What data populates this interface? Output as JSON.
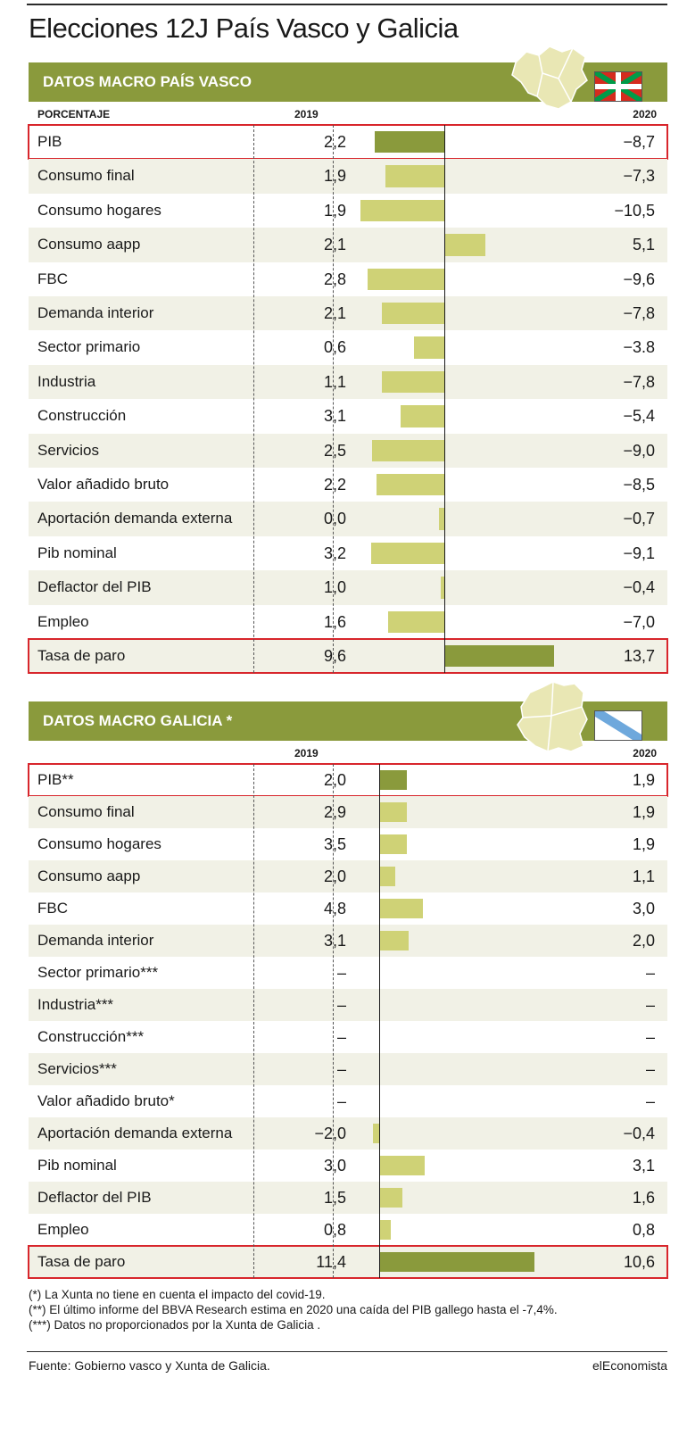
{
  "title": "Elecciones 12J País Vasco y Galicia",
  "colors": {
    "band": "#8a9a3c",
    "bar_light": "#cfd276",
    "bar_dark": "#8a9a3c",
    "highlight": "#d8262c",
    "alt_row": "#f1f1e6"
  },
  "pv": {
    "band_title": "DATOS MACRO PAÍS VASCO",
    "col_label": "PORCENTAJE",
    "col_2019": "2019",
    "col_2020": "2020",
    "icons": [
      "basque-country-map-icon",
      "ikurrina-flag-icon"
    ]
  },
  "ga": {
    "band_title": "DATOS MACRO GALICIA *",
    "col_label": "",
    "col_2019": "2019",
    "col_2020": "2020",
    "icons": [
      "galicia-map-icon",
      "galicia-flag-icon"
    ]
  },
  "chart_data": [
    {
      "type": "bar",
      "title": "DATOS MACRO PAÍS VASCO",
      "unit": "PORCENTAJE",
      "categories": [
        "PIB",
        "Consumo final",
        "Consumo hogares",
        "Consumo aapp",
        "FBC",
        "Demanda interior",
        "Sector primario",
        "Industria",
        "Construcción",
        "Servicios",
        "Valor añadido bruto",
        "Aportación demanda externa",
        "Pib nominal",
        "Deflactor del PIB",
        "Empleo",
        "Tasa de paro"
      ],
      "values_2019_text": [
        "2,2",
        "1,9",
        "1,9",
        "2,1",
        "2,8",
        "2,1",
        "0,6",
        "1,1",
        "3,1",
        "2,5",
        "2,2",
        "0,0",
        "3,2",
        "1,0",
        "1,6",
        "9,6"
      ],
      "values_2020_text": [
        "−8,7",
        "−7,3",
        "−10,5",
        "5,1",
        "−9,6",
        "−7,8",
        "−3.8",
        "−7,8",
        "−5,4",
        "−9,0",
        "−8,5",
        "−0,7",
        "−9,1",
        "−0,4",
        "−7,0",
        "13,7"
      ],
      "series": [
        {
          "name": "2019",
          "values": [
            2.2,
            1.9,
            1.9,
            2.1,
            2.8,
            2.1,
            0.6,
            1.1,
            3.1,
            2.5,
            2.2,
            0.0,
            3.2,
            1.0,
            1.6,
            9.6
          ]
        },
        {
          "name": "2020",
          "values": [
            -8.7,
            -7.3,
            -10.5,
            5.1,
            -9.6,
            -7.8,
            -3.8,
            -7.8,
            -5.4,
            -9.0,
            -8.5,
            -0.7,
            -9.1,
            -0.4,
            -7.0,
            13.7
          ]
        }
      ],
      "highlighted": [
        "PIB",
        "Tasa de paro"
      ]
    },
    {
      "type": "bar",
      "title": "DATOS MACRO GALICIA *",
      "categories": [
        "PIB**",
        "Consumo final",
        "Consumo hogares",
        "Consumo aapp",
        "FBC",
        "Demanda interior",
        "Sector primario***",
        "Industria***",
        "Construcción***",
        "Servicios***",
        "Valor añadido bruto*",
        "Aportación demanda externa",
        "Pib nominal",
        "Deflactor del PIB",
        "Empleo",
        "Tasa de paro"
      ],
      "values_2019_text": [
        "2,0",
        "2,9",
        "3,5",
        "2,0",
        "4,8",
        "3,1",
        "–",
        "–",
        "–",
        "–",
        "–",
        "−2,0",
        "3,0",
        "1,5",
        "0,8",
        "11,4"
      ],
      "values_2020_text": [
        "1,9",
        "1,9",
        "1,9",
        "1,1",
        "3,0",
        "2,0",
        "–",
        "–",
        "–",
        "–",
        "–",
        "−0,4",
        "3,1",
        "1,6",
        "0,8",
        "10,6"
      ],
      "series": [
        {
          "name": "2019",
          "values": [
            2.0,
            2.9,
            3.5,
            2.0,
            4.8,
            3.1,
            null,
            null,
            null,
            null,
            null,
            -2.0,
            3.0,
            1.5,
            0.8,
            11.4
          ]
        },
        {
          "name": "2020",
          "values": [
            1.9,
            1.9,
            1.9,
            1.1,
            3.0,
            2.0,
            null,
            null,
            null,
            null,
            null,
            -0.4,
            3.1,
            1.6,
            0.8,
            10.6
          ]
        }
      ],
      "highlighted": [
        "PIB**",
        "Tasa de paro"
      ]
    }
  ],
  "notes": [
    "(*) La Xunta no tiene en cuenta el impacto del covid-19.",
    "(**) El último informe del BBVA Research estima en 2020 una caída del PIB gallego hasta el -7,4%.",
    "(***) Datos no proporcionados por la Xunta de Galicia ."
  ],
  "source": "Fuente: Gobierno vasco y Xunta de Galicia.",
  "brand": "elEconomista"
}
